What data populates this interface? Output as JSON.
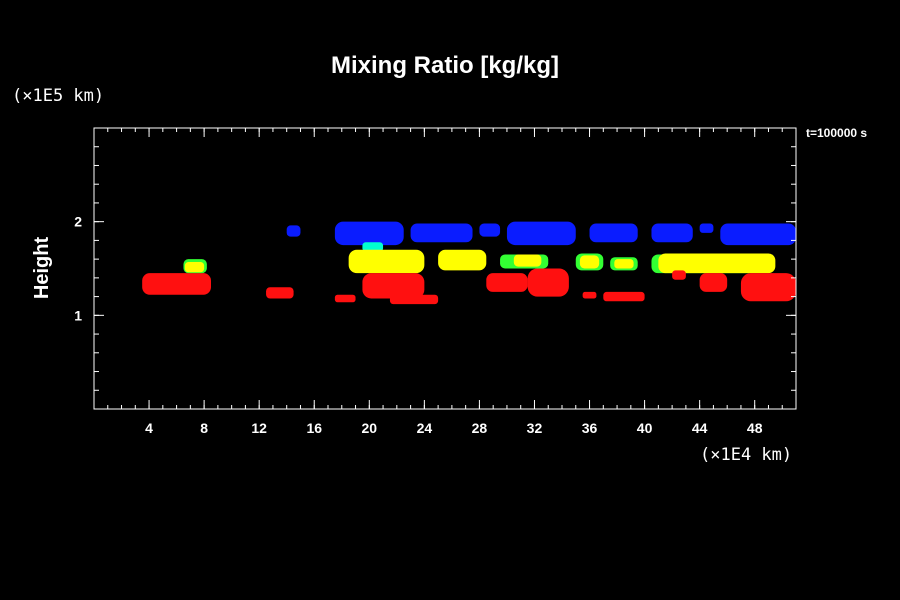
{
  "chart_data": {
    "type": "heatmap",
    "title": "Mixing Ratio [kg/kg]",
    "ylabel": "Height",
    "x_unit": "(×1E4 km)",
    "y_unit": "(×1E5 km)",
    "time_label": "t=100000 s",
    "xlim": [
      0,
      51
    ],
    "ylim": [
      0,
      3
    ],
    "xticks": [
      "4",
      "8",
      "12",
      "16",
      "20",
      "24",
      "28",
      "32",
      "36",
      "40",
      "44",
      "48"
    ],
    "xtick_values": [
      4,
      8,
      12,
      16,
      20,
      24,
      28,
      32,
      36,
      40,
      44,
      48
    ],
    "yticks": [
      "1",
      "2"
    ],
    "ytick_values": [
      1,
      2
    ],
    "minor_x_step": 1,
    "minor_y_step": 0.2,
    "legend_colors": {
      "blue": "#0a1cff",
      "yellow": "#ffff00",
      "green": "#33ff33",
      "cyan": "#00ffd0",
      "red": "#ff1010"
    },
    "regions": [
      {
        "level": "red",
        "color": "#ff1010",
        "x": [
          3.5,
          8.5
        ],
        "y": [
          1.22,
          1.45
        ],
        "extent": "x 3.5–8.5, height 1.22–1.45"
      },
      {
        "level": "green",
        "color": "#33ff33",
        "x": [
          6.5,
          8.2
        ],
        "y": [
          1.45,
          1.6
        ],
        "extent": "x 6.5–8.2, height 1.45–1.60"
      },
      {
        "level": "yellow",
        "color": "#ffff00",
        "x": [
          6.6,
          8.0
        ],
        "y": [
          1.46,
          1.57
        ],
        "extent": "x 6.6–8.0, height 1.46–1.57"
      },
      {
        "level": "blue",
        "color": "#0a1cff",
        "x": [
          14.0,
          15.0
        ],
        "y": [
          1.84,
          1.96
        ],
        "extent": "x 14–15, height 1.84–1.96"
      },
      {
        "level": "red",
        "color": "#ff1010",
        "x": [
          12.5,
          14.5
        ],
        "y": [
          1.18,
          1.3
        ],
        "extent": "x 12.5–14.5, height 1.18–1.30"
      },
      {
        "level": "blue",
        "color": "#0a1cff",
        "x": [
          17.5,
          22.5
        ],
        "y": [
          1.75,
          2.0
        ],
        "extent": "x 17.5–22.5, height 1.75–2.00"
      },
      {
        "level": "cyan",
        "color": "#00ffd0",
        "x": [
          19.5,
          21.0
        ],
        "y": [
          1.68,
          1.78
        ],
        "extent": "x 19.5–21.0, height 1.68–1.78"
      },
      {
        "level": "blue",
        "color": "#0a1cff",
        "x": [
          23.0,
          27.5
        ],
        "y": [
          1.78,
          1.98
        ],
        "extent": "x 23–27.5, height 1.78–1.98"
      },
      {
        "level": "blue",
        "color": "#0a1cff",
        "x": [
          28.0,
          29.5
        ],
        "y": [
          1.84,
          1.98
        ],
        "extent": "x 28–29.5, height 1.84–1.98"
      },
      {
        "level": "yellow",
        "color": "#ffff00",
        "x": [
          18.5,
          24.0
        ],
        "y": [
          1.45,
          1.7
        ],
        "extent": "x 18.5–24, height 1.45–1.70"
      },
      {
        "level": "yellow",
        "color": "#ffff00",
        "x": [
          25.0,
          28.5
        ],
        "y": [
          1.48,
          1.7
        ],
        "extent": "x 25–28.5, height 1.48–1.70"
      },
      {
        "level": "red",
        "color": "#ff1010",
        "x": [
          19.5,
          24.0
        ],
        "y": [
          1.18,
          1.45
        ],
        "extent": "x 19.5–24, height 1.18–1.45"
      },
      {
        "level": "red",
        "color": "#ff1010",
        "x": [
          17.5,
          19.0
        ],
        "y": [
          1.14,
          1.22
        ],
        "extent": "x 17.5–19, height 1.14–1.22"
      },
      {
        "level": "red",
        "color": "#ff1010",
        "x": [
          21.5,
          25.0
        ],
        "y": [
          1.12,
          1.22
        ],
        "extent": "x 21.5–25, height 1.12–1.22"
      },
      {
        "level": "blue",
        "color": "#0a1cff",
        "x": [
          30.0,
          35.0
        ],
        "y": [
          1.75,
          2.0
        ],
        "extent": "x 30–35, height 1.75–2.00"
      },
      {
        "level": "blue",
        "color": "#0a1cff",
        "x": [
          36.0,
          39.5
        ],
        "y": [
          1.78,
          1.98
        ],
        "extent": "x 36–39.5, height 1.78–1.98"
      },
      {
        "level": "blue",
        "color": "#0a1cff",
        "x": [
          40.5,
          43.5
        ],
        "y": [
          1.78,
          1.98
        ],
        "extent": "x 40.5–43.5, height 1.78–1.98"
      },
      {
        "level": "blue",
        "color": "#0a1cff",
        "x": [
          44.0,
          45.0
        ],
        "y": [
          1.88,
          1.98
        ],
        "extent": "x 44–45, height 1.88–1.98"
      },
      {
        "level": "blue",
        "color": "#0a1cff",
        "x": [
          45.5,
          51.0
        ],
        "y": [
          1.75,
          1.98
        ],
        "extent": "x 45.5–51, height 1.75–1.98"
      },
      {
        "level": "green",
        "color": "#33ff33",
        "x": [
          29.5,
          33.0
        ],
        "y": [
          1.5,
          1.65
        ],
        "extent": "x 29.5–33, height 1.50–1.65"
      },
      {
        "level": "yellow",
        "color": "#ffff00",
        "x": [
          30.5,
          32.5
        ],
        "y": [
          1.52,
          1.65
        ],
        "extent": "x 30.5–32.5, height 1.52–1.65"
      },
      {
        "level": "green",
        "color": "#33ff33",
        "x": [
          35.0,
          37.0
        ],
        "y": [
          1.48,
          1.66
        ],
        "extent": "x 35–37, height 1.48–1.66"
      },
      {
        "level": "yellow",
        "color": "#ffff00",
        "x": [
          35.3,
          36.7
        ],
        "y": [
          1.5,
          1.64
        ],
        "extent": "x 35.3–36.7, height 1.50–1.64"
      },
      {
        "level": "green",
        "color": "#33ff33",
        "x": [
          37.5,
          39.5
        ],
        "y": [
          1.48,
          1.62
        ],
        "extent": "x 37.5–39.5, height 1.48–1.62"
      },
      {
        "level": "yellow",
        "color": "#ffff00",
        "x": [
          37.8,
          39.2
        ],
        "y": [
          1.5,
          1.6
        ],
        "extent": "x 37.8–39.2, height 1.50–1.60"
      },
      {
        "level": "green",
        "color": "#33ff33",
        "x": [
          40.5,
          48.0
        ],
        "y": [
          1.45,
          1.65
        ],
        "extent": "x 40.5–48, height 1.45–1.65"
      },
      {
        "level": "yellow",
        "color": "#ffff00",
        "x": [
          41.0,
          49.5
        ],
        "y": [
          1.45,
          1.66
        ],
        "extent": "x 41–49.5, height 1.45–1.66"
      },
      {
        "level": "red",
        "color": "#ff1010",
        "x": [
          28.5,
          31.5
        ],
        "y": [
          1.25,
          1.45
        ],
        "extent": "x 28.5–31.5, height 1.25–1.45"
      },
      {
        "level": "red",
        "color": "#ff1010",
        "x": [
          31.5,
          34.5
        ],
        "y": [
          1.2,
          1.5
        ],
        "extent": "x 31.5–34.5, height 1.20–1.50"
      },
      {
        "level": "red",
        "color": "#ff1010",
        "x": [
          35.5,
          36.5
        ],
        "y": [
          1.18,
          1.25
        ],
        "extent": "x 35.5–36.5, height 1.18–1.25"
      },
      {
        "level": "red",
        "color": "#ff1010",
        "x": [
          37.0,
          40.0
        ],
        "y": [
          1.15,
          1.25
        ],
        "extent": "x 37–40, height 1.15–1.25"
      },
      {
        "level": "red",
        "color": "#ff1010",
        "x": [
          42.0,
          43.0
        ],
        "y": [
          1.38,
          1.48
        ],
        "extent": "x 42–43, height 1.38–1.48"
      },
      {
        "level": "red",
        "color": "#ff1010",
        "x": [
          44.0,
          46.0
        ],
        "y": [
          1.25,
          1.45
        ],
        "extent": "x 44–46, height 1.25–1.45"
      },
      {
        "level": "red",
        "color": "#ff1010",
        "x": [
          47.0,
          51.0
        ],
        "y": [
          1.15,
          1.45
        ],
        "extent": "x 47–51, height 1.15–1.45"
      }
    ]
  }
}
